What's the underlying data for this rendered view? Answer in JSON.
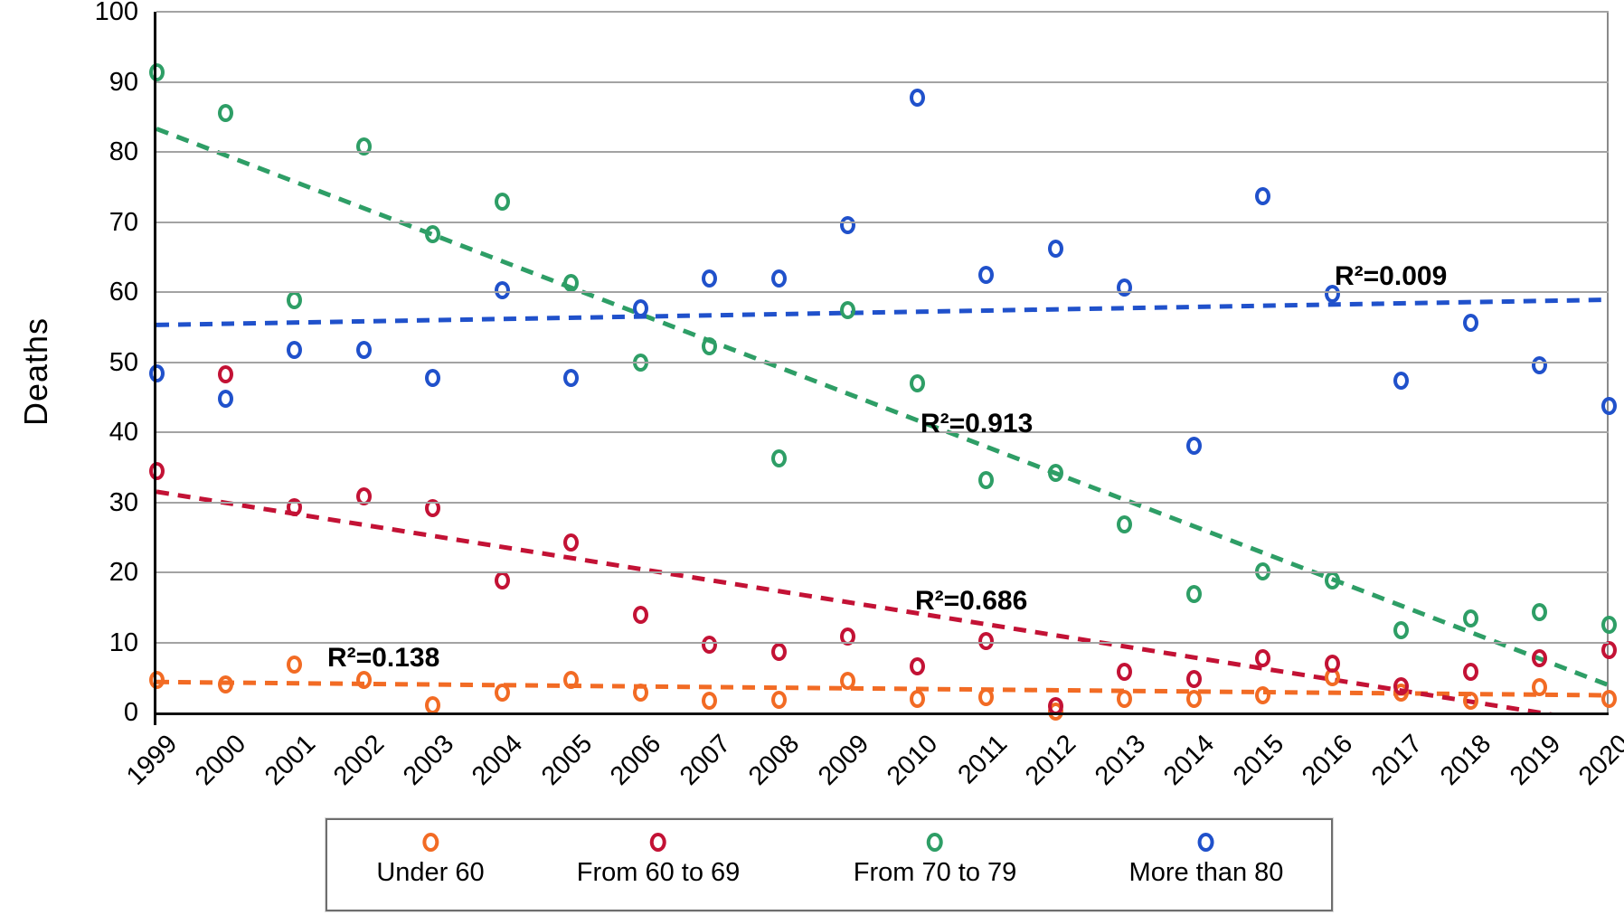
{
  "chart_data": {
    "type": "scatter",
    "title": "",
    "xlabel": "",
    "ylabel": "Deaths",
    "ylim": [
      0,
      100
    ],
    "ytick_step": 10,
    "grid": "horizontal",
    "legend_position": "bottom",
    "categories": [
      1999,
      2000,
      2001,
      2002,
      2003,
      2004,
      2005,
      2006,
      2007,
      2008,
      2009,
      2010,
      2011,
      2012,
      2013,
      2014,
      2015,
      2016,
      2017,
      2018,
      2019,
      2020
    ],
    "series": [
      {
        "name": "Under 60",
        "color": "#f26b24",
        "values": [
          4.6,
          4.0,
          6.9,
          4.7,
          1.0,
          2.8,
          4.7,
          2.8,
          1.7,
          1.8,
          4.5,
          1.9,
          2.2,
          0.1,
          1.9,
          1.9,
          2.5,
          5.0,
          2.8,
          1.7,
          3.6,
          2.0
        ],
        "trend": {
          "start_value": 4.35,
          "end_value": 2.45,
          "r2_label": "R²=0.138"
        }
      },
      {
        "name": "From 60 to 69",
        "color": "#c31235",
        "values": [
          34.4,
          48.3,
          29.3,
          30.8,
          29.1,
          18.9,
          24.2,
          13.9,
          9.7,
          8.6,
          10.9,
          6.6,
          10.2,
          0.9,
          5.8,
          4.8,
          7.7,
          7.0,
          3.7,
          5.8,
          7.8,
          8.9
        ],
        "trend": {
          "start_value": 31.5,
          "end_value": -1.6,
          "r2_label": "R²=0.686"
        }
      },
      {
        "name": "From 70 to 79",
        "color": "#2e9e66",
        "values": [
          91.4,
          85.5,
          58.9,
          80.8,
          68.3,
          72.9,
          61.3,
          50.0,
          52.3,
          36.3,
          57.4,
          47.0,
          33.2,
          34.2,
          26.8,
          16.9,
          20.1,
          18.9,
          11.8,
          13.4,
          14.3,
          12.5
        ],
        "trend": {
          "start_value": 83.3,
          "end_value": 3.9,
          "r2_label": "R²=0.913"
        }
      },
      {
        "name": "More than 80",
        "color": "#2051cb",
        "values": [
          48.4,
          44.8,
          51.8,
          51.7,
          47.7,
          60.3,
          47.7,
          57.7,
          62.0,
          61.9,
          69.5,
          87.8,
          62.5,
          66.2,
          60.7,
          38.1,
          73.7,
          59.7,
          47.3,
          55.6,
          49.6,
          43.8
        ],
        "trend": {
          "start_value": 55.3,
          "end_value": 58.9,
          "r2_label": "R²=0.009"
        }
      }
    ],
    "annotations": [
      {
        "text": "R²=0.138",
        "series": "Under 60"
      },
      {
        "text": "R²=0.686",
        "series": "From 60 to 69"
      },
      {
        "text": "R²=0.913",
        "series": "From 70 to 79"
      },
      {
        "text": "R²=0.009",
        "series": "More than 80"
      }
    ]
  },
  "axis": {
    "ylabel": "Deaths",
    "yticks": [
      "0",
      "10",
      "20",
      "30",
      "40",
      "50",
      "60",
      "70",
      "80",
      "90",
      "100"
    ],
    "xticks": [
      "1999",
      "2000",
      "2001",
      "2002",
      "2003",
      "2004",
      "2005",
      "2006",
      "2007",
      "2008",
      "2009",
      "2010",
      "2011",
      "2012",
      "2013",
      "2014",
      "2015",
      "2016",
      "2017",
      "2018",
      "2019",
      "2020"
    ]
  },
  "legend": {
    "items": [
      {
        "label": "Under 60",
        "color": "#f26b24"
      },
      {
        "label": "From 60 to 69",
        "color": "#c31235"
      },
      {
        "label": "From 70 to 79",
        "color": "#2e9e66"
      },
      {
        "label": "More than 80",
        "color": "#2051cb"
      }
    ]
  }
}
